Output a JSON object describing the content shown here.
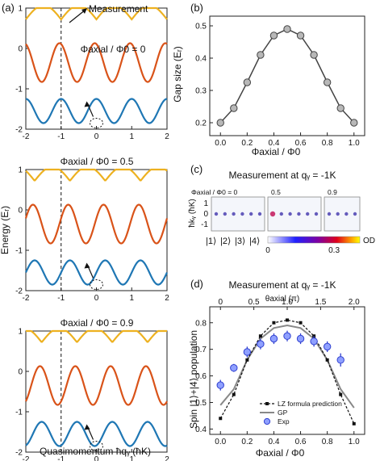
{
  "panels": {
    "a": {
      "label": "(a)",
      "measurement_label": "Measurement",
      "ylabel": "Energy (Eᵣ)",
      "xlabel": "Quasimomentum ħqᵧ (ħK)",
      "x_ticks": [
        "-2",
        "-1",
        "0",
        "1",
        "2"
      ],
      "y_ticks": [
        "1",
        "0",
        "-1",
        "-2"
      ],
      "subplots": [
        {
          "title": "Φaxial / Φ0 = 0",
          "flux": 0
        },
        {
          "title": "Φaxial / Φ0 = 0.5",
          "flux": 0.5
        },
        {
          "title": "Φaxial / Φ0 = 0.9",
          "flux": 0.9
        }
      ],
      "band_colors": {
        "lowest": "#1f77b4",
        "middle": "#d95319",
        "highest": "#edb120"
      },
      "dashed_line_x": -1
    },
    "b": {
      "label": "(b)",
      "ylabel": "Gap size (Eᵣ)",
      "xlabel": "Φaxial / Φ0",
      "x_ticks": [
        "0.0",
        "0.2",
        "0.4",
        "0.6",
        "0.8",
        "1.0"
      ],
      "y_ticks": [
        "0.2",
        "0.3",
        "0.4",
        "0.5"
      ]
    },
    "c": {
      "label": "(c)",
      "title": "Measurement at qᵧ = -1K",
      "ylabel": "ħkᵧ (ħK)",
      "y_ticks": [
        "1",
        "0",
        "-1"
      ],
      "image_labels": [
        "Φaxial / Φ0 = 0",
        "0.5",
        "0.9"
      ],
      "spin_states": [
        "|1⟩",
        "|2⟩",
        "|3⟩",
        "|4⟩"
      ],
      "colorbar_ticks": [
        "0",
        "0.3"
      ],
      "colorbar_label": "OD"
    },
    "d": {
      "label": "(d)",
      "title": "Measurement at qᵧ = -1K",
      "top_axis_label": "θaxial (π)",
      "top_ticks": [
        "0",
        "0.5",
        "1.0",
        "1.5",
        "2.0"
      ],
      "ylabel": "Spin |1⟩+|4⟩ population",
      "xlabel": "Φaxial / Φ0",
      "x_ticks": [
        "0.0",
        "0.2",
        "0.4",
        "0.6",
        "0.8",
        "1.0"
      ],
      "y_ticks": [
        "0.4",
        "0.5",
        "0.6",
        "0.7",
        "0.8"
      ],
      "legend": [
        "LZ formula prediction",
        "GP",
        "Exp"
      ]
    }
  },
  "chart_data": [
    {
      "type": "line",
      "panel": "b",
      "x": [
        0.0,
        0.1,
        0.2,
        0.3,
        0.4,
        0.5,
        0.6,
        0.7,
        0.8,
        0.9,
        1.0
      ],
      "series": [
        {
          "values": [
            0.2,
            0.245,
            0.325,
            0.41,
            0.47,
            0.49,
            0.47,
            0.41,
            0.325,
            0.245,
            0.2
          ]
        }
      ],
      "xlim": [
        -0.08,
        1.08
      ],
      "ylim": [
        0.16,
        0.53
      ]
    },
    {
      "type": "line",
      "panel": "d",
      "x": [
        0.0,
        0.1,
        0.2,
        0.3,
        0.4,
        0.5,
        0.6,
        0.7,
        0.8,
        0.9,
        1.0
      ],
      "series": [
        {
          "name": "LZ formula prediction",
          "values": [
            0.44,
            0.53,
            0.66,
            0.75,
            0.8,
            0.81,
            0.8,
            0.75,
            0.66,
            0.53,
            0.42
          ]
        },
        {
          "name": "GP",
          "values": [
            0.49,
            0.55,
            0.66,
            0.74,
            0.78,
            0.79,
            0.78,
            0.74,
            0.66,
            0.55,
            0.48
          ]
        },
        {
          "name": "Exp",
          "values": [
            0.565,
            0.63,
            0.69,
            0.72,
            0.74,
            0.75,
            0.74,
            0.73,
            0.71,
            0.66,
            null
          ],
          "errors": [
            0.02,
            0.015,
            0.02,
            0.02,
            0.02,
            0.02,
            0.02,
            0.02,
            0.02,
            0.025,
            null
          ]
        }
      ],
      "exp_x": [
        0.0,
        0.1,
        0.2,
        0.3,
        0.4,
        0.5,
        0.6,
        0.7,
        0.8,
        0.9
      ],
      "xlim": [
        -0.08,
        1.08
      ],
      "ylim": [
        0.38,
        0.86
      ]
    }
  ]
}
